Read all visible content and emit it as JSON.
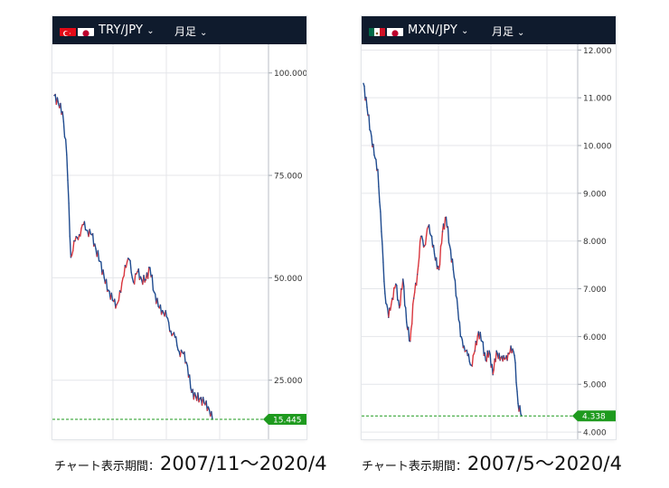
{
  "period_label": "月足",
  "footer_prefix": "チャート表示期間：",
  "colors": {
    "up": "#d9363e",
    "down": "#1f4b8f",
    "bar": "#0f1b2d",
    "last": "#1e9a1e",
    "grid": "#e4e6ea"
  },
  "chart_data": [
    {
      "type": "line",
      "title": "TRY/JPY",
      "flags": [
        "turkey-flag-icon",
        "japan-flag-icon"
      ],
      "period": "2007/11～2020/4",
      "x": [
        "2007-11",
        "2008-03",
        "2008-07",
        "2008-10",
        "2009-01",
        "2009-04",
        "2009-09",
        "2010-01",
        "2010-06",
        "2010-10",
        "2011-02",
        "2011-06",
        "2011-08",
        "2011-11",
        "2012-02",
        "2012-06",
        "2012-10",
        "2013-01",
        "2013-04",
        "2013-06",
        "2013-10",
        "2014-01",
        "2014-06",
        "2014-11",
        "2015-03",
        "2015-08",
        "2016-01",
        "2016-07",
        "2016-11",
        "2017-04",
        "2017-09",
        "2018-01",
        "2018-05",
        "2018-08",
        "2018-10",
        "2019-03",
        "2019-08",
        "2020-01",
        "2020-04"
      ],
      "values": [
        94.5,
        92.5,
        90.5,
        80,
        55,
        59,
        60.5,
        63,
        61.5,
        60.5,
        57,
        54,
        50,
        47,
        44.5,
        43.5,
        46.5,
        53,
        54.5,
        49,
        51.5,
        49.5,
        49.5,
        52.5,
        46.5,
        43,
        42,
        40.5,
        37,
        35.5,
        32,
        31.5,
        28.5,
        22,
        21,
        20.5,
        19.5,
        18.5,
        15.445
      ],
      "y_ticks": [
        "100.000",
        "75.000",
        "50.000",
        "25.000"
      ],
      "ylim": [
        10.6,
        107
      ],
      "last_value": "15.445"
    },
    {
      "type": "line",
      "title": "MXN/JPY",
      "flags": [
        "mexico-flag-icon",
        "japan-flag-icon"
      ],
      "period": "2007/5～2020/4",
      "x": [
        "2007-05",
        "2007-08",
        "2008-01",
        "2008-05",
        "2008-08",
        "2008-10",
        "2009-01",
        "2009-04",
        "2009-09",
        "2010-01",
        "2010-06",
        "2010-11",
        "2011-04",
        "2011-09",
        "2011-12",
        "2012-06",
        "2012-10",
        "2013-01",
        "2013-04",
        "2013-07",
        "2013-10",
        "2014-01",
        "2014-06",
        "2014-11",
        "2015-03",
        "2015-08",
        "2015-12",
        "2016-03",
        "2016-06",
        "2016-09",
        "2016-12",
        "2017-03",
        "2017-07",
        "2017-09",
        "2017-12",
        "2018-03",
        "2018-06",
        "2018-09",
        "2019-01",
        "2019-05",
        "2019-09",
        "2019-12",
        "2020-02",
        "2020-03",
        "2020-04"
      ],
      "values": [
        11.3,
        10.8,
        10.3,
        9.8,
        9.5,
        8.2,
        6.9,
        6.4,
        6.8,
        7.1,
        6.6,
        7.2,
        6.3,
        5.9,
        6.8,
        7.3,
        8.1,
        7.9,
        8.3,
        8.1,
        7.6,
        7.4,
        8.2,
        8.5,
        7.9,
        7.4,
        6.8,
        6.0,
        5.8,
        5.6,
        5.4,
        5.7,
        6.1,
        5.9,
        5.5,
        5.7,
        5.2,
        5.7,
        5.5,
        5.6,
        5.5,
        5.8,
        5.6,
        4.6,
        4.338
      ],
      "y_ticks": [
        "12.000",
        "11.000",
        "10.000",
        "9.000",
        "8.000",
        "7.000",
        "6.000",
        "5.000",
        "4.000"
      ],
      "ylim": [
        3.85,
        12.12
      ],
      "last_value": "4.338"
    }
  ]
}
